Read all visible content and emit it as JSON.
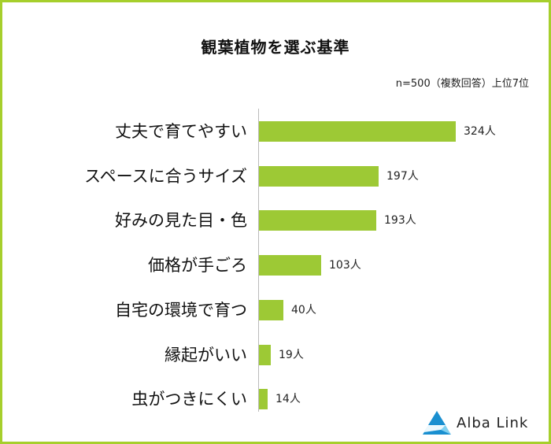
{
  "title": "観葉植物を選ぶ基準",
  "note": "n=500（複数回答）上位7位",
  "logo_text": "Alba Link",
  "colors": {
    "bar": "#9dc935",
    "border": "#a6cf2c",
    "logo_dark": "#1a8fd0",
    "logo_light": "#7fd0f0"
  },
  "chart_data": {
    "type": "bar",
    "orientation": "horizontal",
    "title": "観葉植物を選ぶ基準",
    "categories": [
      "丈夫で育てやすい",
      "スペースに合うサイズ",
      "好みの見た目・色",
      "価格が手ごろ",
      "自宅の環境で育つ",
      "縁起がいい",
      "虫がつきにくい"
    ],
    "values": [
      324,
      197,
      193,
      103,
      40,
      19,
      14
    ],
    "value_labels": [
      "324人",
      "197人",
      "193人",
      "103人",
      "40人",
      "19人",
      "14人"
    ],
    "unit": "人",
    "grid": false,
    "legend": "none"
  }
}
